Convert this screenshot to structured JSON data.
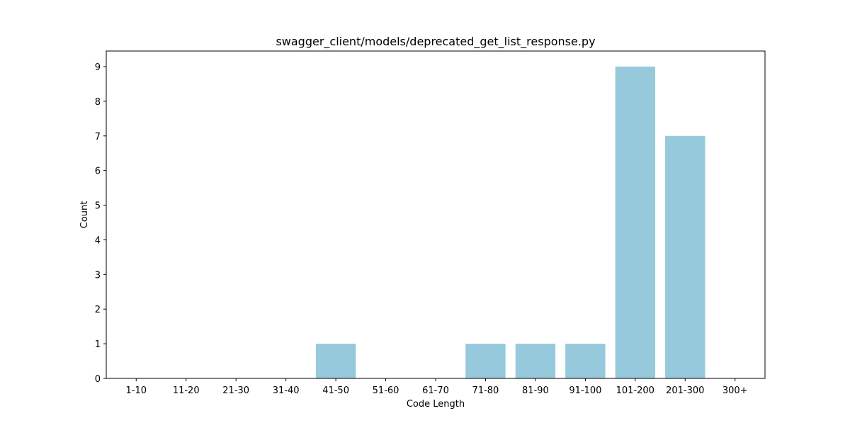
{
  "chart_data": {
    "type": "bar",
    "title": "swagger_client/models/deprecated_get_list_response.py",
    "xlabel": "Code Length",
    "ylabel": "Count",
    "categories": [
      "1-10",
      "11-20",
      "21-30",
      "31-40",
      "41-50",
      "51-60",
      "61-70",
      "71-80",
      "81-90",
      "91-100",
      "101-200",
      "201-300",
      "300+"
    ],
    "values": [
      0,
      0,
      0,
      0,
      1,
      0,
      0,
      1,
      1,
      1,
      9,
      7,
      0
    ],
    "ylim": [
      0,
      9.45
    ],
    "yticks": [
      0,
      1,
      2,
      3,
      4,
      5,
      6,
      7,
      8,
      9
    ],
    "grid": false,
    "bar_color": "#96c9dc",
    "axis_color": "#000000"
  }
}
